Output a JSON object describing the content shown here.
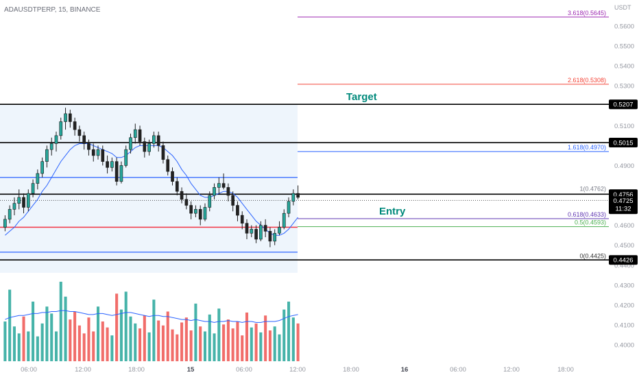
{
  "header": {
    "symbol": "ADAUSDTPERP",
    "interval": "15",
    "exchange": "BINANCE"
  },
  "currency_label": "USDT",
  "annotations": {
    "target": "Target",
    "entry": "Entry"
  },
  "colors": {
    "up": "#26a69a",
    "down": "#ef5350",
    "ma": "#2962ff",
    "zone": "#eef5fc",
    "fib_3618": "#9c27b0",
    "fib_2618": "#f44336",
    "fib_1618": "#2962ff",
    "fib_1": "#787b86",
    "fib_0618": "#5e35b1",
    "fib_05": "#4caf50",
    "fib_0": "#000000",
    "target_text": "#00897b",
    "entry_text": "#00897b",
    "axis_text": "#9598a1"
  },
  "chart_data": {
    "type": "candlestick",
    "symbol": "ADAUSDTPERP",
    "timeframe": "15",
    "exchange": "BINANCE",
    "ylim": [
      0.395,
      0.574
    ],
    "y_ticks": [
      "0.5600",
      "0.5500",
      "0.5400",
      "0.5300",
      "0.5100",
      "0.4900",
      "0.4600",
      "0.4500",
      "0.4400",
      "0.4300",
      "0.4200",
      "0.4100",
      "0.4000"
    ],
    "x_ticks": [
      "06:00",
      "12:00",
      "18:00",
      "15",
      "06:00",
      "12:00",
      "18:00",
      "16",
      "06:00",
      "12:00",
      "18:00"
    ],
    "current_price": "0.4725",
    "countdown": "11:32",
    "price_levels": [
      {
        "label": "0.5207",
        "value": 0.5207,
        "style": "black-line"
      },
      {
        "label": "0.5015",
        "value": 0.5015,
        "style": "black-line"
      },
      {
        "label": "0.4756",
        "value": 0.4756,
        "style": "black-line"
      },
      {
        "label": "0.4426",
        "value": 0.4426,
        "style": "black-line"
      }
    ],
    "fibonacci": [
      {
        "label": "3.618(0.5645)",
        "ratio": 3.618,
        "value": 0.5645
      },
      {
        "label": "2.618(0.5308)",
        "ratio": 2.618,
        "value": 0.5308
      },
      {
        "label": "1.618(0.4970)",
        "ratio": 1.618,
        "value": 0.497
      },
      {
        "label": "1(0.4762)",
        "ratio": 1,
        "value": 0.4762
      },
      {
        "label": "0.618(0.4633)",
        "ratio": 0.618,
        "value": 0.4633
      },
      {
        "label": "0.5(0.4593)",
        "ratio": 0.5,
        "value": 0.4593
      },
      {
        "label": "0(0.4425)",
        "ratio": 0,
        "value": 0.4425
      }
    ],
    "horizontal_lines": [
      {
        "value": 0.484,
        "color": "blue"
      },
      {
        "value": 0.459,
        "color": "red"
      },
      {
        "value": 0.4465,
        "color": "blue"
      }
    ],
    "candles": [
      [
        0.459,
        0.465,
        0.457,
        0.463
      ],
      [
        0.463,
        0.47,
        0.461,
        0.468
      ],
      [
        0.468,
        0.474,
        0.465,
        0.471
      ],
      [
        0.471,
        0.478,
        0.468,
        0.474
      ],
      [
        0.474,
        0.476,
        0.466,
        0.469
      ],
      [
        0.469,
        0.478,
        0.467,
        0.476
      ],
      [
        0.476,
        0.483,
        0.474,
        0.481
      ],
      [
        0.481,
        0.488,
        0.478,
        0.486
      ],
      [
        0.486,
        0.494,
        0.484,
        0.492
      ],
      [
        0.492,
        0.5,
        0.489,
        0.498
      ],
      [
        0.498,
        0.504,
        0.495,
        0.501
      ],
      [
        0.501,
        0.507,
        0.497,
        0.505
      ],
      [
        0.505,
        0.514,
        0.503,
        0.512
      ],
      [
        0.512,
        0.519,
        0.508,
        0.516
      ],
      [
        0.516,
        0.518,
        0.509,
        0.512
      ],
      [
        0.512,
        0.514,
        0.505,
        0.508
      ],
      [
        0.508,
        0.51,
        0.502,
        0.505
      ],
      [
        0.505,
        0.507,
        0.498,
        0.501
      ],
      [
        0.501,
        0.503,
        0.495,
        0.498
      ],
      [
        0.498,
        0.501,
        0.492,
        0.495
      ],
      [
        0.495,
        0.5,
        0.493,
        0.498
      ],
      [
        0.498,
        0.5,
        0.49,
        0.492
      ],
      [
        0.492,
        0.495,
        0.486,
        0.489
      ],
      [
        0.489,
        0.494,
        0.487,
        0.492
      ],
      [
        0.492,
        0.494,
        0.48,
        0.482
      ],
      [
        0.482,
        0.492,
        0.481,
        0.49
      ],
      [
        0.49,
        0.5,
        0.489,
        0.498
      ],
      [
        0.498,
        0.506,
        0.496,
        0.504
      ],
      [
        0.504,
        0.511,
        0.501,
        0.508
      ],
      [
        0.508,
        0.51,
        0.5,
        0.502
      ],
      [
        0.502,
        0.504,
        0.494,
        0.497
      ],
      [
        0.497,
        0.503,
        0.495,
        0.501
      ],
      [
        0.501,
        0.507,
        0.499,
        0.505
      ],
      [
        0.505,
        0.507,
        0.497,
        0.5
      ],
      [
        0.5,
        0.502,
        0.491,
        0.493
      ],
      [
        0.493,
        0.495,
        0.485,
        0.487
      ],
      [
        0.487,
        0.489,
        0.48,
        0.482
      ],
      [
        0.482,
        0.484,
        0.475,
        0.477
      ],
      [
        0.477,
        0.479,
        0.471,
        0.473
      ],
      [
        0.473,
        0.476,
        0.468,
        0.47
      ],
      [
        0.47,
        0.472,
        0.463,
        0.466
      ],
      [
        0.466,
        0.47,
        0.464,
        0.468
      ],
      [
        0.468,
        0.47,
        0.46,
        0.463
      ],
      [
        0.463,
        0.471,
        0.462,
        0.469
      ],
      [
        0.469,
        0.477,
        0.467,
        0.475
      ],
      [
        0.475,
        0.481,
        0.473,
        0.479
      ],
      [
        0.479,
        0.484,
        0.476,
        0.481
      ],
      [
        0.481,
        0.486,
        0.478,
        0.479
      ],
      [
        0.479,
        0.481,
        0.472,
        0.475
      ],
      [
        0.475,
        0.477,
        0.467,
        0.47
      ],
      [
        0.47,
        0.472,
        0.462,
        0.465
      ],
      [
        0.465,
        0.467,
        0.458,
        0.461
      ],
      [
        0.461,
        0.463,
        0.453,
        0.456
      ],
      [
        0.456,
        0.46,
        0.454,
        0.458
      ],
      [
        0.458,
        0.46,
        0.451,
        0.453
      ],
      [
        0.453,
        0.462,
        0.452,
        0.46
      ],
      [
        0.46,
        0.463,
        0.454,
        0.457
      ],
      [
        0.457,
        0.459,
        0.449,
        0.452
      ],
      [
        0.452,
        0.458,
        0.45,
        0.456
      ],
      [
        0.456,
        0.462,
        0.455,
        0.459
      ],
      [
        0.459,
        0.468,
        0.458,
        0.466
      ],
      [
        0.466,
        0.474,
        0.464,
        0.472
      ],
      [
        0.472,
        0.478,
        0.47,
        0.476
      ],
      [
        0.476,
        0.48,
        0.473,
        0.474
      ]
    ],
    "moving_average": [
      0.455,
      0.457,
      0.459,
      0.462,
      0.464,
      0.467,
      0.47,
      0.473,
      0.477,
      0.48,
      0.484,
      0.488,
      0.492,
      0.495,
      0.498,
      0.5,
      0.501,
      0.501,
      0.501,
      0.5,
      0.499,
      0.498,
      0.497,
      0.496,
      0.494,
      0.494,
      0.495,
      0.497,
      0.499,
      0.5,
      0.5,
      0.5,
      0.5,
      0.5,
      0.499,
      0.497,
      0.495,
      0.492,
      0.488,
      0.485,
      0.481,
      0.478,
      0.475,
      0.474,
      0.474,
      0.475,
      0.476,
      0.477,
      0.477,
      0.476,
      0.474,
      0.471,
      0.468,
      0.465,
      0.462,
      0.46,
      0.458,
      0.456,
      0.455,
      0.455,
      0.456,
      0.458,
      0.461,
      0.464
    ],
    "volume": [
      40,
      72,
      35,
      28,
      45,
      30,
      60,
      25,
      38,
      55,
      48,
      30,
      80,
      65,
      42,
      50,
      36,
      28,
      44,
      30,
      55,
      40,
      34,
      26,
      68,
      52,
      70,
      45,
      38,
      33,
      46,
      29,
      62,
      41,
      36,
      50,
      32,
      27,
      39,
      44,
      31,
      58,
      35,
      30,
      47,
      28,
      53,
      37,
      42,
      33,
      40,
      26,
      49,
      34,
      38,
      29,
      46,
      31,
      35,
      27,
      52,
      60,
      44,
      38
    ],
    "volume_ma": [
      42,
      44,
      45,
      46,
      46,
      47,
      48,
      48,
      49,
      49,
      50,
      50,
      51,
      51,
      50,
      50,
      49,
      48,
      47,
      47,
      48,
      48,
      47,
      46,
      47,
      48,
      49,
      49,
      48,
      47,
      46,
      45,
      46,
      46,
      45,
      45,
      44,
      43,
      42,
      42,
      41,
      42,
      41,
      40,
      40,
      39,
      40,
      40,
      41,
      40,
      40,
      39,
      40,
      40,
      39,
      39,
      40,
      40,
      40,
      41,
      43,
      45,
      46,
      47
    ]
  }
}
